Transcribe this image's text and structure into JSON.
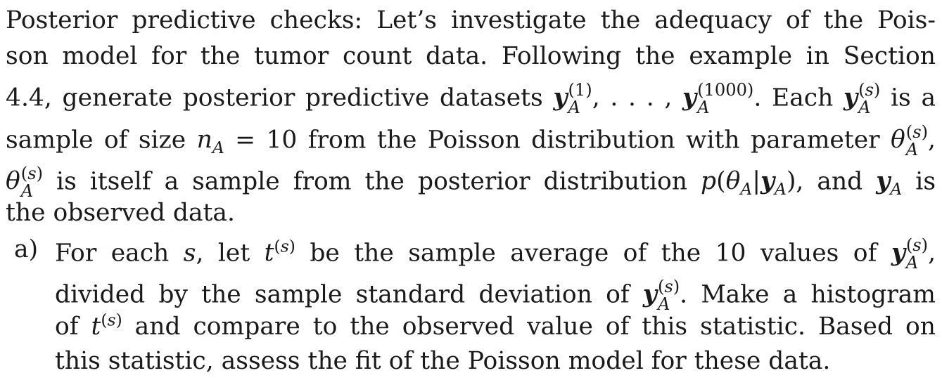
{
  "paragraph": {
    "line1": "Posterior predictive checks: Let’s investigate the adequacy of the Pois-",
    "line2": "son model for the tumor count data. Following the example in Section",
    "line3a": "4.4, generate posterior predictive datasets",
    "line3b": ". Each",
    "line3c": "is a",
    "line4a": "sample of size",
    "line4b": "= 10 from the Poisson distribution with parameter",
    "line5a": "is itself a sample from the posterior distribution",
    "line5b": ", and",
    "line5c": "is",
    "line6": "the observed data."
  },
  "part_a": {
    "label": "a)",
    "line1a": "For each",
    "line1b": ", let",
    "line1c": "be the sample average of the 10 values of",
    "line2a": "divided by the sample standard deviation of",
    "line2b": ". Make a histogram",
    "line3a": "of",
    "line3b": "and compare to the observed value of this statistic. Based on",
    "line4": "this statistic, assess the fit of the Poisson model for these data."
  }
}
